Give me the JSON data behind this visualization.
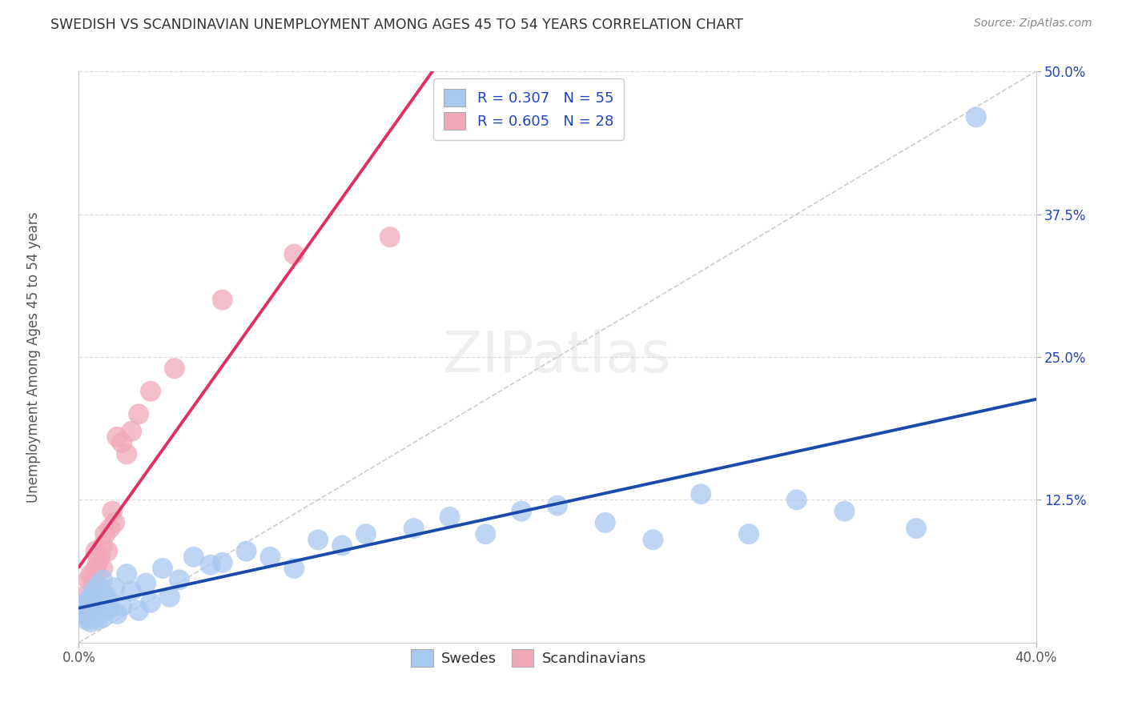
{
  "title": "SWEDISH VS SCANDINAVIAN UNEMPLOYMENT AMONG AGES 45 TO 54 YEARS CORRELATION CHART",
  "source": "Source: ZipAtlas.com",
  "ylabel_label": "Unemployment Among Ages 45 to 54 years",
  "legend_bottom": [
    "Swedes",
    "Scandinavians"
  ],
  "blue_color": "#A8C8F0",
  "pink_color": "#F0A8B8",
  "blue_line_color": "#1A4BAA",
  "pink_line_color": "#E03060",
  "legend_text_color": "#2244BB",
  "title_color": "#333333",
  "source_color": "#888888",
  "grid_color": "#DDDDDD",
  "diag_color": "#CCCCCC",
  "xmin": 0.0,
  "xmax": 0.4,
  "ymin": 0.0,
  "ymax": 0.5,
  "yticks": [
    0.125,
    0.25,
    0.375,
    0.5
  ],
  "ytick_labels": [
    "12.5%",
    "25.0%",
    "37.5%",
    "50.0%"
  ],
  "xticks": [
    0.0,
    0.4
  ],
  "xtick_labels": [
    "0.0%",
    "40.0%"
  ],
  "swedes_x": [
    0.001,
    0.002,
    0.003,
    0.003,
    0.004,
    0.004,
    0.005,
    0.005,
    0.005,
    0.006,
    0.006,
    0.007,
    0.007,
    0.008,
    0.008,
    0.009,
    0.009,
    0.01,
    0.01,
    0.011,
    0.012,
    0.013,
    0.015,
    0.016,
    0.018,
    0.02,
    0.022,
    0.025,
    0.028,
    0.03,
    0.035,
    0.038,
    0.042,
    0.048,
    0.055,
    0.06,
    0.07,
    0.08,
    0.09,
    0.1,
    0.11,
    0.12,
    0.14,
    0.155,
    0.17,
    0.185,
    0.2,
    0.22,
    0.24,
    0.26,
    0.28,
    0.3,
    0.32,
    0.35,
    0.375
  ],
  "swedes_y": [
    0.025,
    0.03,
    0.02,
    0.035,
    0.028,
    0.022,
    0.04,
    0.03,
    0.018,
    0.032,
    0.045,
    0.025,
    0.038,
    0.02,
    0.05,
    0.028,
    0.035,
    0.055,
    0.022,
    0.042,
    0.038,
    0.03,
    0.048,
    0.025,
    0.032,
    0.06,
    0.045,
    0.028,
    0.052,
    0.035,
    0.065,
    0.04,
    0.055,
    0.075,
    0.068,
    0.07,
    0.08,
    0.075,
    0.065,
    0.09,
    0.085,
    0.095,
    0.1,
    0.11,
    0.095,
    0.115,
    0.12,
    0.105,
    0.09,
    0.13,
    0.095,
    0.125,
    0.115,
    0.1,
    0.46
  ],
  "scandi_x": [
    0.001,
    0.002,
    0.003,
    0.004,
    0.005,
    0.005,
    0.006,
    0.007,
    0.007,
    0.008,
    0.009,
    0.01,
    0.01,
    0.011,
    0.012,
    0.013,
    0.014,
    0.015,
    0.016,
    0.018,
    0.02,
    0.022,
    0.025,
    0.03,
    0.04,
    0.06,
    0.09,
    0.13
  ],
  "scandi_y": [
    0.03,
    0.04,
    0.025,
    0.055,
    0.035,
    0.06,
    0.05,
    0.065,
    0.08,
    0.07,
    0.075,
    0.085,
    0.065,
    0.095,
    0.08,
    0.1,
    0.115,
    0.105,
    0.18,
    0.175,
    0.165,
    0.185,
    0.2,
    0.22,
    0.24,
    0.3,
    0.34,
    0.355
  ]
}
